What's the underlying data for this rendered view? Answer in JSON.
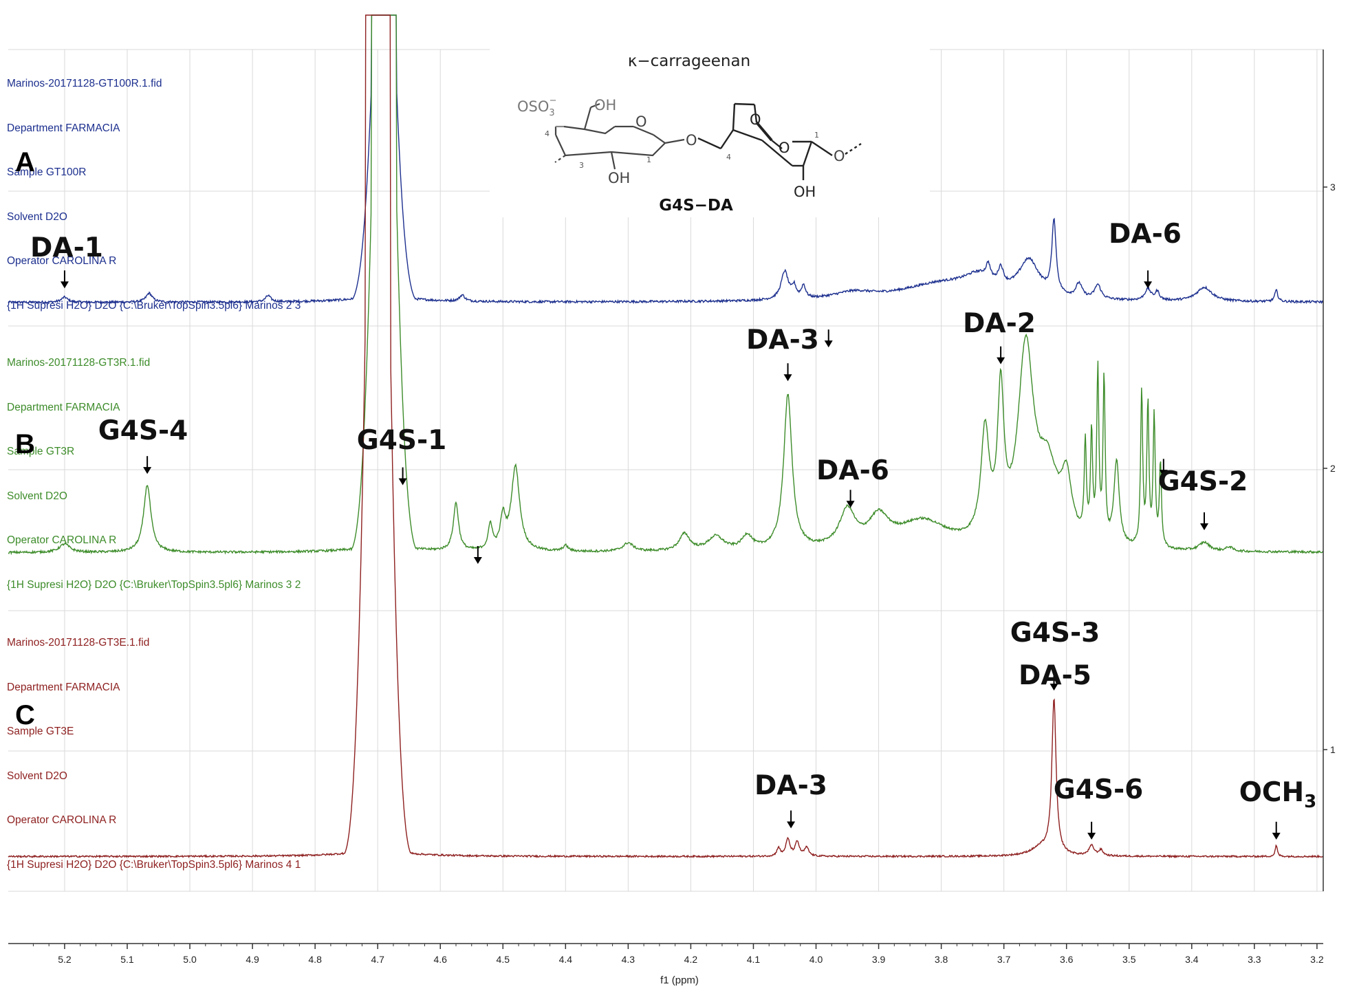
{
  "chart_data": {
    "type": "line",
    "xlabel": "f1 (ppm)",
    "x_reversed": true,
    "xlim": [
      5.29,
      3.19
    ],
    "x_ticks": [
      5.2,
      5.1,
      5.0,
      4.9,
      4.8,
      4.7,
      4.6,
      4.5,
      4.4,
      4.3,
      4.2,
      4.1,
      4.0,
      3.9,
      3.8,
      3.7,
      3.6,
      3.5,
      3.4,
      3.3,
      3.2
    ],
    "x_tick_labels": [
      "5.2",
      "5.1",
      "5.0",
      "4.9",
      "4.8",
      "4.7",
      "4.6",
      "4.5",
      "4.4",
      "4.3",
      "4.2",
      "4.1",
      "4.0",
      "3.9",
      "3.8",
      "3.7",
      "3.6",
      "3.5",
      "3.4",
      "3.3",
      "3.2"
    ],
    "right_axis_ticks": [
      {
        "label": "3",
        "value": 3
      },
      {
        "label": "2",
        "value": 2
      },
      {
        "label": "1",
        "value": 1
      }
    ],
    "grid": true,
    "series": [
      {
        "panel": "A",
        "color": "#1c2f8e",
        "baseline": 2.59,
        "noise": 0.004,
        "peaks": [
          [
            5.2,
            0.018,
            0.006
          ],
          [
            5.065,
            0.032,
            0.006
          ],
          [
            4.875,
            0.022,
            0.005
          ],
          [
            4.565,
            0.022,
            0.005
          ],
          [
            4.05,
            0.1,
            0.007
          ],
          [
            4.035,
            0.04,
            0.004
          ],
          [
            4.02,
            0.045,
            0.004
          ],
          [
            3.94,
            0.025,
            0.04
          ],
          [
            3.8,
            0.06,
            0.08
          ],
          [
            3.74,
            0.06,
            0.03
          ],
          [
            3.725,
            0.05,
            0.004
          ],
          [
            3.705,
            0.06,
            0.005
          ],
          [
            3.66,
            0.13,
            0.02
          ],
          [
            3.62,
            0.26,
            0.004
          ],
          [
            3.58,
            0.05,
            0.006
          ],
          [
            3.55,
            0.05,
            0.006
          ],
          [
            3.47,
            0.04,
            0.006
          ],
          [
            3.455,
            0.03,
            0.004
          ],
          [
            3.38,
            0.05,
            0.015
          ],
          [
            3.265,
            0.04,
            0.003
          ]
        ],
        "solvent": {
          "center": 4.69,
          "top": 3.99
        }
      },
      {
        "panel": "B",
        "color": "#3d8c2a",
        "baseline": 1.7,
        "noise": 0.004,
        "peaks": [
          [
            5.2,
            0.03,
            0.01
          ],
          [
            5.068,
            0.24,
            0.007
          ],
          [
            4.66,
            0.11,
            0.002
          ],
          [
            4.575,
            0.17,
            0.005
          ],
          [
            4.52,
            0.09,
            0.004
          ],
          [
            4.5,
            0.11,
            0.005
          ],
          [
            4.48,
            0.3,
            0.008
          ],
          [
            4.4,
            0.02,
            0.005
          ],
          [
            4.3,
            0.03,
            0.01
          ],
          [
            4.21,
            0.06,
            0.01
          ],
          [
            4.16,
            0.05,
            0.015
          ],
          [
            4.11,
            0.05,
            0.01
          ],
          [
            4.045,
            0.55,
            0.008
          ],
          [
            3.95,
            0.13,
            0.015
          ],
          [
            3.9,
            0.1,
            0.02
          ],
          [
            3.83,
            0.1,
            0.05
          ],
          [
            3.73,
            0.38,
            0.008
          ],
          [
            3.705,
            0.5,
            0.006
          ],
          [
            3.665,
            0.68,
            0.015
          ],
          [
            3.63,
            0.25,
            0.02
          ],
          [
            3.6,
            0.2,
            0.01
          ],
          [
            3.57,
            0.33,
            0.002
          ],
          [
            3.56,
            0.37,
            0.002
          ],
          [
            3.55,
            0.6,
            0.002
          ],
          [
            3.54,
            0.57,
            0.002
          ],
          [
            3.52,
            0.3,
            0.005
          ],
          [
            3.48,
            0.55,
            0.002
          ],
          [
            3.47,
            0.5,
            0.002
          ],
          [
            3.46,
            0.46,
            0.002
          ],
          [
            3.45,
            0.3,
            0.002
          ],
          [
            3.38,
            0.03,
            0.01
          ],
          [
            3.34,
            0.015,
            0.006
          ]
        ],
        "solvent": {
          "center": 4.69,
          "top": 3.99
        }
      },
      {
        "panel": "C",
        "color": "#8e1f1f",
        "baseline": 0.62,
        "noise": 0.003,
        "peaks": [
          [
            4.06,
            0.03,
            0.003
          ],
          [
            4.045,
            0.06,
            0.004
          ],
          [
            4.03,
            0.05,
            0.004
          ],
          [
            4.015,
            0.03,
            0.004
          ],
          [
            3.64,
            0.03,
            0.02
          ],
          [
            3.62,
            0.55,
            0.004
          ],
          [
            3.56,
            0.035,
            0.005
          ],
          [
            3.545,
            0.02,
            0.004
          ],
          [
            3.265,
            0.04,
            0.002
          ]
        ],
        "solvent": {
          "center": 4.7,
          "top": 3.99
        }
      }
    ]
  },
  "panels": {
    "A": {
      "letter": "A",
      "lines": [
        "Marinos-20171128-GT100R.1.fid",
        "Department FARMACIA",
        "Sample GT100R",
        "Solvent D2O",
        "Operator CAROLINA R",
        "{1H Supresi H2O} D2O {C:\\Bruker\\TopSpin3.5pl6} Marinos 2 3"
      ],
      "color": "#1c2f8e"
    },
    "B": {
      "letter": "B",
      "lines": [
        "Marinos-20171128-GT3R.1.fid",
        "Department FARMACIA",
        "Sample GT3R",
        "Solvent D2O",
        "Operator CAROLINA R",
        "{1H Supresi H2O} D2O {C:\\Bruker\\TopSpin3.5pl6} Marinos 3 2"
      ],
      "color": "#3d8c2a"
    },
    "C": {
      "letter": "C",
      "lines": [
        "Marinos-20171128-GT3E.1.fid",
        "Department FARMACIA",
        "Sample GT3E",
        "Solvent D2O",
        "Operator CAROLINA R",
        "{1H Supresi H2O} D2O {C:\\Bruker\\TopSpin3.5pl6} Marinos 4 1"
      ],
      "color": "#8e1f1f"
    }
  },
  "annotations": [
    {
      "id": "A-DA-1",
      "label": "DA-1",
      "ppm": 5.2,
      "arrow_value": 2.64
    },
    {
      "id": "A-DA-6",
      "label": "DA-6",
      "ppm": 3.47,
      "arrow_value": 2.64
    },
    {
      "id": "B-DA-3",
      "label": "DA-3",
      "ppm": 4.045,
      "arrow_value": 2.31
    },
    {
      "id": "B-arrow-398",
      "label": "",
      "ppm": 3.98,
      "arrow_value": 2.43
    },
    {
      "id": "B-DA-2",
      "label": "DA-2",
      "ppm": 3.705,
      "arrow_value": 2.37
    },
    {
      "id": "B-G4S-4",
      "label": "G4S-4",
      "ppm": 5.068,
      "arrow_value": 1.98
    },
    {
      "id": "B-G4S-1",
      "label": "G4S-1",
      "ppm": 4.66,
      "arrow_value": 1.94
    },
    {
      "id": "B-DA-6",
      "label": "DA-6",
      "ppm": 3.945,
      "arrow_value": 1.86
    },
    {
      "id": "B-arrow-345",
      "label": "",
      "ppm": 3.445,
      "arrow_value": 1.97
    },
    {
      "id": "B-G4S-2",
      "label": "G4S-2",
      "ppm": 3.38,
      "arrow_value": 1.78
    },
    {
      "id": "B-arrow-454",
      "label": "",
      "ppm": 4.54,
      "arrow_value": 1.66
    },
    {
      "id": "C-G4S-3-DA-5",
      "label": "G4S-3",
      "label2": "DA-5",
      "ppm": 3.62,
      "arrow_value": 1.21
    },
    {
      "id": "C-DA-3",
      "label": "DA-3",
      "ppm": 4.04,
      "arrow_value": 0.72
    },
    {
      "id": "C-G4S-6",
      "label": "G4S-6",
      "ppm": 3.56,
      "arrow_value": 0.68
    },
    {
      "id": "C-OCH3",
      "label": "OCH",
      "label_sub": "3",
      "ppm": 3.265,
      "arrow_value": 0.68
    }
  ],
  "structure": {
    "title": "κ−carrageenan",
    "name": "G4S−DA",
    "sulfate": "OSO",
    "sulfate_sub": "3",
    "sulfate_sup": "−",
    "oh": "OH",
    "o": "O",
    "num1": "1",
    "num3": "3",
    "num4": "4"
  }
}
